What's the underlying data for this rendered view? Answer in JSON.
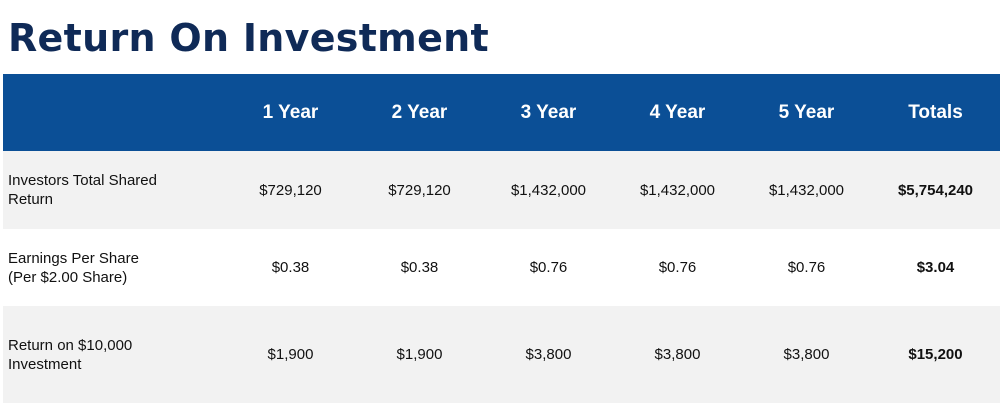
{
  "title": "Return On Investment",
  "table": {
    "headers": [
      "",
      "1 Year",
      "2 Year",
      "3 Year",
      "4 Year",
      "5 Year",
      "Totals"
    ],
    "rows": [
      {
        "label_line1": "Investors Total Shared",
        "label_line2": "Return",
        "values": [
          "$729,120",
          "$729,120",
          "$1,432,000",
          "$1,432,000",
          "$1,432,000"
        ],
        "total": "$5,754,240"
      },
      {
        "label_line1": "Earnings Per Share",
        "label_line2": "(Per $2.00 Share)",
        "values": [
          "$0.38",
          "$0.38",
          "$0.76",
          "$0.76",
          "$0.76"
        ],
        "total": "$3.04"
      },
      {
        "label_line1": "Return on $10,000",
        "label_line2": "Investment",
        "values": [
          "$1,900",
          "$1,900",
          "$3,800",
          "$3,800",
          "$3,800"
        ],
        "total": "$15,200"
      }
    ]
  },
  "colors": {
    "title": "#0f2a57",
    "header_bg": "#0b4f96",
    "header_text": "#ffffff",
    "row_alt_bg": "#f2f2f2"
  }
}
